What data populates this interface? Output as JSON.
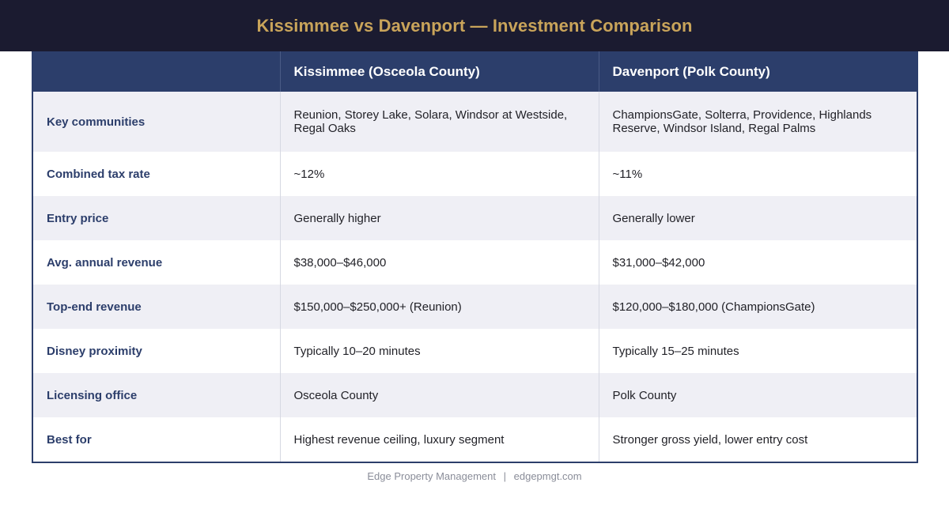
{
  "header": {
    "title": "Kissimmee vs Davenport — Investment Comparison"
  },
  "table": {
    "columns": [
      "",
      "Kissimmee (Osceola County)",
      "Davenport (Polk County)"
    ],
    "rows": [
      {
        "label": "Key communities",
        "kissimmee": "Reunion, Storey Lake, Solara, Windsor at Westside, Regal Oaks",
        "davenport": "ChampionsGate, Solterra, Providence, Highlands Reserve, Windsor Island, Regal Palms"
      },
      {
        "label": "Combined tax rate",
        "kissimmee": "~12%",
        "davenport": "~11%"
      },
      {
        "label": "Entry price",
        "kissimmee": "Generally higher",
        "davenport": "Generally lower"
      },
      {
        "label": "Avg. annual revenue",
        "kissimmee": "$38,000–$46,000",
        "davenport": "$31,000–$42,000"
      },
      {
        "label": "Top-end revenue",
        "kissimmee": "$150,000–$250,000+ (Reunion)",
        "davenport": "$120,000–$180,000 (ChampionsGate)"
      },
      {
        "label": "Disney proximity",
        "kissimmee": "Typically 10–20 minutes",
        "davenport": "Typically 15–25 minutes"
      },
      {
        "label": "Licensing office",
        "kissimmee": "Osceola County",
        "davenport": "Polk County"
      },
      {
        "label": "Best for",
        "kissimmee": "Highest revenue ceiling, luxury segment",
        "davenport": "Stronger gross yield, lower entry cost"
      }
    ]
  },
  "footer": {
    "company": "Edge Property Management",
    "separator": "|",
    "website": "edgepmgt.com"
  },
  "colors": {
    "banner_bg": "#1b1b30",
    "title_gold": "#c9a45a",
    "header_navy": "#2c3e6b",
    "row_alt": "#efeff5"
  }
}
